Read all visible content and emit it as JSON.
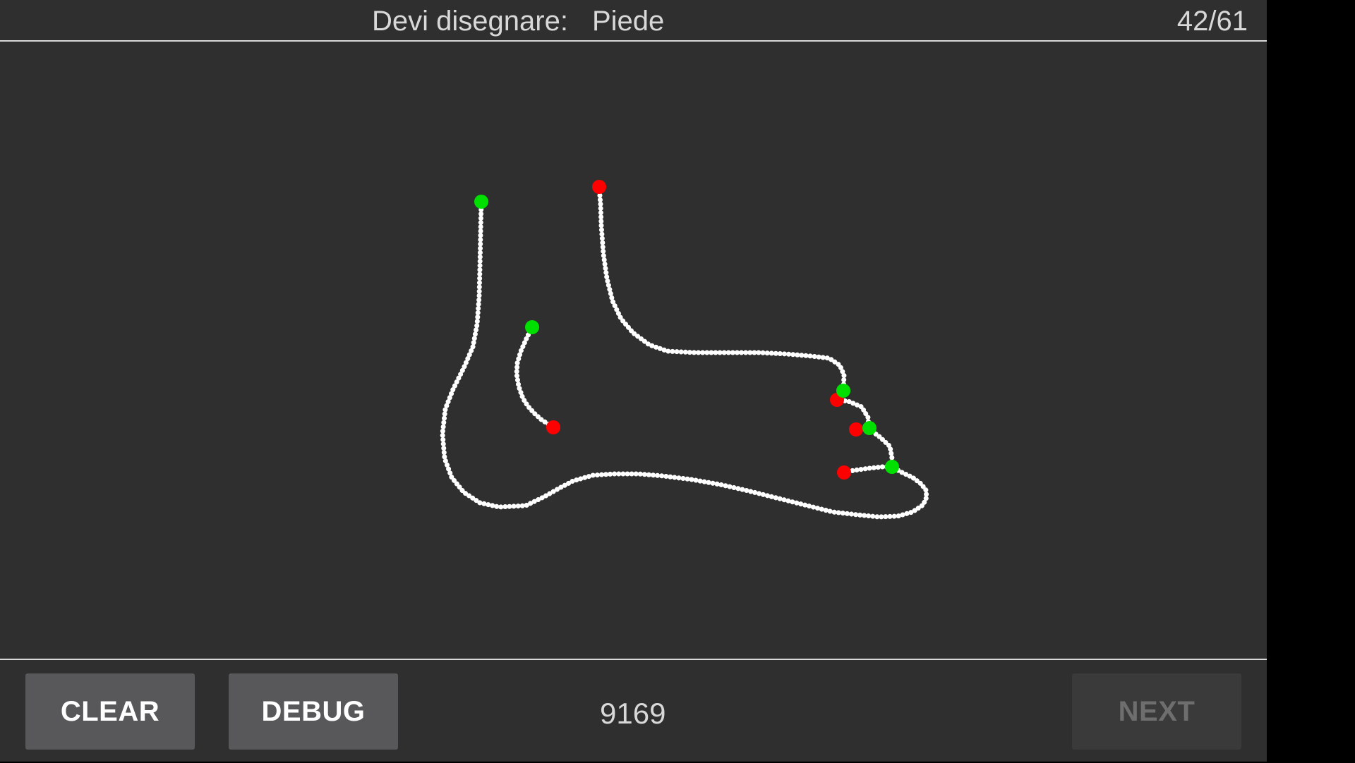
{
  "header": {
    "prompt_label": "Devi disegnare:",
    "prompt_word": "Piede",
    "progress": "42/61"
  },
  "canvas": {
    "stroke_color": "#ffffff",
    "start_marker_color": "#00e000",
    "end_marker_color": "#ff0000"
  },
  "footer": {
    "clear_label": "CLEAR",
    "debug_label": "DEBUG",
    "score": "9169",
    "next_label": "NEXT"
  },
  "colors": {
    "background": "#2f2f2f",
    "button": "#58585a",
    "button_disabled": "#3a3a3a"
  }
}
